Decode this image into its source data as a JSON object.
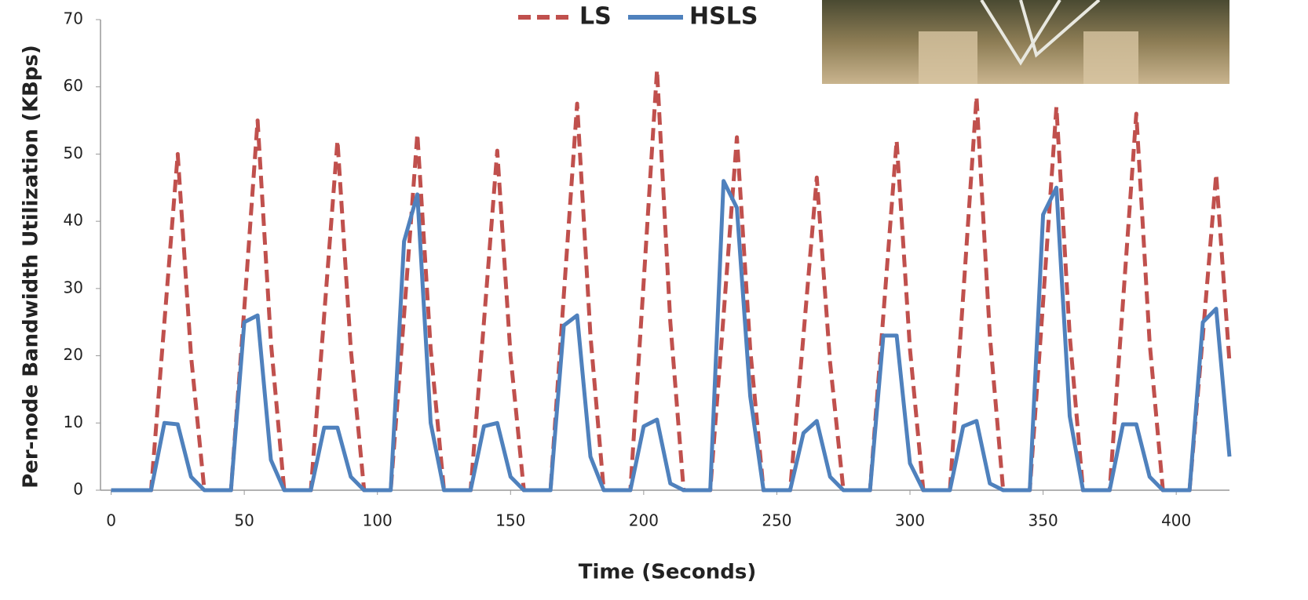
{
  "chart_data": {
    "type": "line",
    "x_label": "Time (Seconds)",
    "y_label": "Per-node Bandwidth Utilization (KBps)",
    "x": [
      0,
      5,
      10,
      15,
      20,
      25,
      30,
      35,
      40,
      45,
      50,
      55,
      60,
      65,
      70,
      75,
      80,
      85,
      90,
      95,
      100,
      105,
      110,
      115,
      120,
      125,
      130,
      135,
      140,
      145,
      150,
      155,
      160,
      165,
      170,
      175,
      180,
      185,
      190,
      195,
      200,
      205,
      210,
      215,
      220,
      225,
      230,
      235,
      240,
      245,
      250,
      255,
      260,
      265,
      270,
      275,
      280,
      285,
      290,
      295,
      300,
      305,
      310,
      315,
      320,
      325,
      330,
      335,
      340,
      345,
      350,
      355,
      360,
      365,
      370,
      375,
      380,
      385,
      390,
      395,
      400,
      405,
      410,
      415,
      420
    ],
    "series": [
      {
        "name": "LS",
        "color": "#c0504d",
        "dashed": true,
        "values": [
          0,
          0,
          0,
          0,
          25,
          50,
          20,
          0,
          0,
          0,
          27,
          55,
          22,
          0,
          0,
          0,
          26,
          52,
          21,
          0,
          0,
          0,
          26,
          53,
          21,
          0,
          0,
          0,
          25,
          50.5,
          20,
          0,
          0,
          0,
          29,
          57.5,
          23,
          0,
          0,
          0,
          31,
          62.5,
          25,
          0,
          0,
          0,
          26,
          52.5,
          21,
          0,
          0,
          0,
          23,
          46.5,
          19,
          0,
          0,
          0,
          26,
          52,
          21,
          0,
          0,
          0,
          29,
          58.5,
          23,
          0,
          0,
          0,
          28,
          57,
          23,
          0,
          0,
          0,
          28,
          56,
          22,
          0,
          0,
          0,
          23,
          47,
          19
        ]
      },
      {
        "name": "HSLS",
        "color": "#4f81bd",
        "dashed": false,
        "values": [
          0,
          0,
          0,
          0,
          10,
          9.8,
          2,
          0,
          0,
          0,
          25,
          26,
          4.5,
          0,
          0,
          0,
          9.3,
          9.3,
          2,
          0,
          0,
          0,
          37,
          44,
          10,
          0,
          0,
          0,
          9.5,
          10,
          2,
          0,
          0,
          0,
          24.5,
          26,
          5,
          0,
          0,
          0,
          9.5,
          10.5,
          1,
          0,
          0,
          0,
          46,
          42,
          14,
          0,
          0,
          0,
          8.5,
          10.3,
          2,
          0,
          0,
          0,
          23,
          23,
          4,
          0,
          0,
          0,
          9.5,
          10.3,
          1,
          0,
          0,
          0,
          41,
          45,
          11,
          0,
          0,
          0,
          9.8,
          9.8,
          2,
          0,
          0,
          0,
          25,
          27,
          5
        ]
      }
    ],
    "xlim": [
      -4,
      420
    ],
    "xticks": [
      0,
      50,
      100,
      150,
      200,
      250,
      300,
      350,
      400
    ],
    "ylim": [
      0,
      70
    ],
    "yticks": [
      0,
      10,
      20,
      30,
      40,
      50,
      60,
      70
    ],
    "grid": false,
    "legend": "top"
  }
}
